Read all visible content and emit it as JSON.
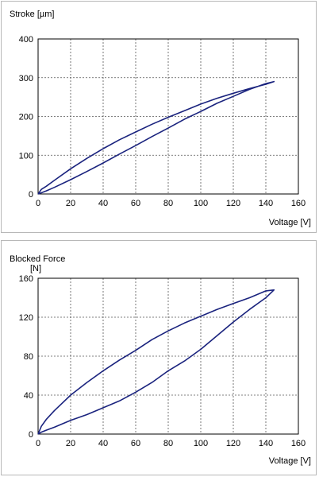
{
  "chart_data": [
    {
      "type": "line",
      "title": "",
      "ylabel": "Stroke [µm]",
      "xlabel": "Voltage [V]",
      "xlim": [
        0,
        160
      ],
      "ylim": [
        0,
        400
      ],
      "xticks": [
        "0",
        "20",
        "40",
        "60",
        "80",
        "100",
        "120",
        "140",
        "160"
      ],
      "yticks": [
        "0",
        "100",
        "200",
        "300",
        "400"
      ],
      "grid": true,
      "line_color": "#1a237e",
      "series": [
        {
          "x": [
            0,
            2,
            5,
            10,
            20,
            30,
            40,
            50,
            60,
            70,
            80,
            90,
            100,
            110,
            120,
            130,
            140,
            145,
            140,
            130,
            120,
            110,
            100,
            90,
            80,
            70,
            60,
            50,
            40,
            30,
            20,
            10,
            5,
            2,
            0
          ],
          "values": [
            0,
            12,
            20,
            35,
            65,
            92,
            117,
            140,
            160,
            180,
            198,
            215,
            232,
            247,
            260,
            272,
            283,
            290,
            285,
            270,
            252,
            234,
            213,
            193,
            170,
            148,
            125,
            103,
            80,
            58,
            37,
            17,
            8,
            3,
            0
          ]
        }
      ]
    },
    {
      "type": "line",
      "title": "",
      "ylabel": "Blocked Force",
      "ylabel_unit": "[N]",
      "xlabel": "Voltage [V]",
      "xlim": [
        0,
        160
      ],
      "ylim": [
        0,
        160
      ],
      "xticks": [
        "0",
        "20",
        "40",
        "60",
        "80",
        "100",
        "120",
        "140",
        "160"
      ],
      "yticks": [
        "0",
        "40",
        "80",
        "120",
        "160"
      ],
      "grid": true,
      "line_color": "#1a237e",
      "series": [
        {
          "x": [
            0,
            2,
            5,
            10,
            20,
            30,
            40,
            50,
            60,
            70,
            80,
            90,
            100,
            110,
            120,
            130,
            140,
            145,
            140,
            130,
            120,
            110,
            100,
            90,
            80,
            70,
            60,
            50,
            40,
            30,
            20,
            10,
            5,
            2,
            0
          ],
          "values": [
            0,
            8,
            15,
            24,
            40,
            53,
            65,
            76,
            86,
            97,
            106,
            114,
            121,
            128,
            134,
            140,
            147,
            148,
            140,
            128,
            115,
            101,
            87,
            75,
            65,
            53,
            43,
            34,
            27,
            20,
            14,
            7,
            4,
            2,
            0
          ]
        }
      ]
    }
  ]
}
